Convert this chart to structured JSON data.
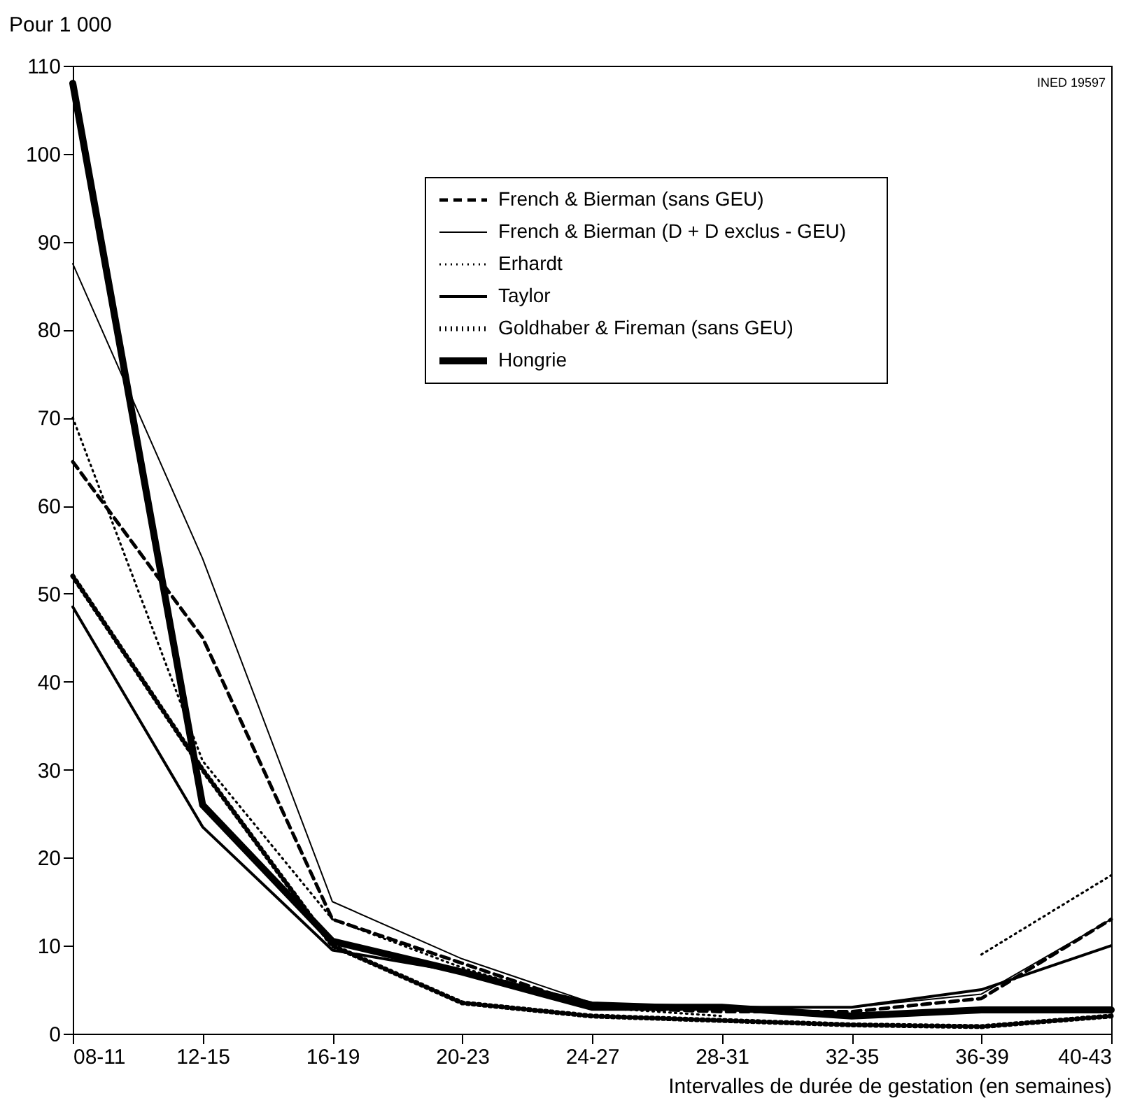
{
  "chart_data": {
    "type": "line",
    "xlabel": "Intervalles de durée de gestation (en semaines)",
    "ylabel": "Pour 1 000",
    "annotations": [
      "INED 19597"
    ],
    "categories": [
      "08-11",
      "12-15",
      "16-19",
      "20-23",
      "24-27",
      "28-31",
      "32-35",
      "36-39",
      "40-43"
    ],
    "ylim": [
      0,
      110
    ],
    "yticks": [
      0,
      10,
      20,
      30,
      40,
      50,
      60,
      70,
      80,
      90,
      100,
      110
    ],
    "grid": false,
    "legend": "top right",
    "marker": "none",
    "series": [
      {
        "name": "French & Bierman (sans GEU)",
        "color": "#000000",
        "line_style": "dashed",
        "values": [
          65,
          45,
          13,
          8,
          3,
          2.5,
          2.5,
          4,
          13
        ]
      },
      {
        "name": "French & Bierman (D + D exclus - GEU)",
        "color": "#000000",
        "line_style": "solid",
        "values": [
          87.5,
          54,
          15,
          8.5,
          3.5,
          3,
          3,
          4.5,
          13
        ]
      },
      {
        "name": "Erhardt",
        "color": "#000000",
        "line_style": "dotted",
        "values": [
          70,
          31,
          13,
          7.5,
          3,
          2,
          null,
          9,
          18
        ]
      },
      {
        "name": "Taylor",
        "color": "#000000",
        "line_style": "solid",
        "values": [
          48.5,
          23.5,
          9.5,
          7,
          3.5,
          3,
          3,
          5,
          10
        ]
      },
      {
        "name": "Goldhaber & Fireman (sans GEU)",
        "color": "#000000",
        "line_style": "dotted",
        "values": [
          52,
          30,
          10,
          3.5,
          2,
          1.5,
          1,
          0.8,
          2
        ]
      },
      {
        "name": "Hongrie",
        "color": "#000000",
        "line_style": "solid",
        "values": [
          108,
          26,
          10.5,
          7,
          3,
          3,
          2,
          2.7,
          2.7
        ]
      }
    ]
  }
}
